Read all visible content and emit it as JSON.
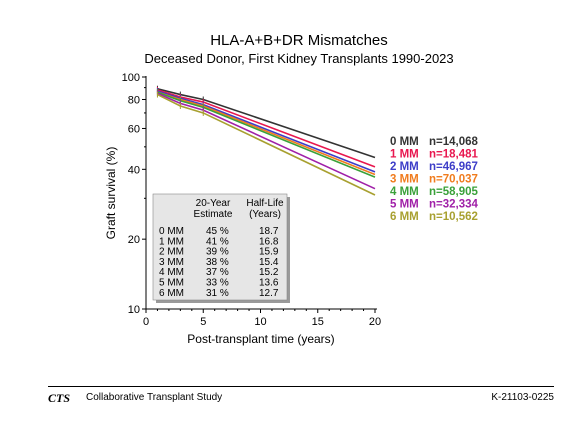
{
  "chart_data": {
    "type": "line",
    "title": "HLA-A+B+DR Mismatches",
    "subtitle": "Deceased Donor, First Kidney Transplants 1990-2023",
    "xlabel": "Post-transplant time (years)",
    "ylabel": "Graft survival (%)",
    "xlim": [
      0,
      20
    ],
    "ylim": [
      10,
      100
    ],
    "y_scale": "log",
    "x_ticks": [
      "0",
      "5",
      "10",
      "15",
      "20"
    ],
    "y_ticks": [
      "10",
      "20",
      "40",
      "60",
      "80",
      "100"
    ],
    "grid": false,
    "legend_position": "right",
    "series": [
      {
        "name": "0 MM",
        "n": "n=14,068",
        "color": "#333333",
        "x": [
          1,
          3,
          5,
          20
        ],
        "y": [
          89,
          84,
          80,
          45
        ]
      },
      {
        "name": "1 MM",
        "n": "n=18,481",
        "color": "#e8174f",
        "x": [
          1,
          3,
          5,
          20
        ],
        "y": [
          88,
          82,
          78,
          41
        ]
      },
      {
        "name": "2 MM",
        "n": "n=46,967",
        "color": "#3d3dc8",
        "x": [
          1,
          3,
          5,
          20
        ],
        "y": [
          87,
          81,
          76,
          39
        ]
      },
      {
        "name": "3 MM",
        "n": "n=70,037",
        "color": "#f07c1e",
        "x": [
          1,
          3,
          5,
          20
        ],
        "y": [
          86,
          80,
          75,
          38
        ]
      },
      {
        "name": "4 MM",
        "n": "n=58,905",
        "color": "#3aa13a",
        "x": [
          1,
          3,
          5,
          20
        ],
        "y": [
          86,
          79,
          74,
          37
        ]
      },
      {
        "name": "5 MM",
        "n": "n=32,334",
        "color": "#a020a8",
        "x": [
          1,
          3,
          5,
          20
        ],
        "y": [
          85,
          77,
          72,
          33
        ]
      },
      {
        "name": "6 MM",
        "n": "n=10,562",
        "color": "#a8a030",
        "x": [
          1,
          3,
          5,
          20
        ],
        "y": [
          84,
          75,
          70,
          31
        ]
      }
    ],
    "table": {
      "headers": [
        "",
        "20-Year Estimate",
        "Half-Life (Years)"
      ],
      "header_col2_lines": [
        "20-Year",
        "Estimate"
      ],
      "header_col3_lines": [
        "Half-Life",
        "(Years)"
      ],
      "rows": [
        [
          "0 MM",
          "45 %",
          "18.7"
        ],
        [
          "1 MM",
          "41 %",
          "16.8"
        ],
        [
          "2 MM",
          "39 %",
          "15.9"
        ],
        [
          "3 MM",
          "38 %",
          "15.4"
        ],
        [
          "4 MM",
          "37 %",
          "15.2"
        ],
        [
          "5 MM",
          "33 %",
          "13.6"
        ],
        [
          "6 MM",
          "31 %",
          "12.7"
        ]
      ]
    }
  },
  "footer": {
    "logo": "CTS",
    "organization": "Collaborative Transplant Study",
    "code": "K-21103-0225"
  }
}
